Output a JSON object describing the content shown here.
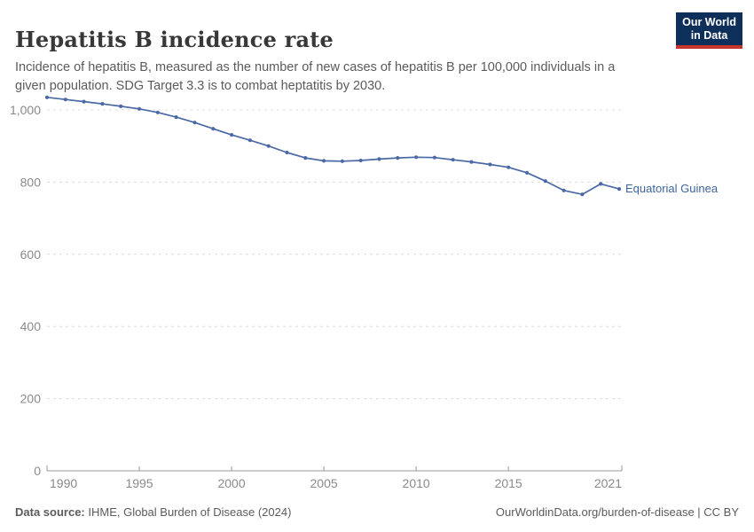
{
  "header": {
    "title": "Hepatitis B incidence rate",
    "subtitle": "Incidence of hepatitis B, measured as the number of new cases of hepatitis B per 100,000 individuals in a given population. SDG Target 3.3 is to combat heptatitis by 2030.",
    "logo": {
      "line1": "Our World",
      "line2": "in Data",
      "bg_color": "#0e2f5a",
      "bar_color": "#c6352c"
    }
  },
  "chart_data": {
    "type": "line",
    "title": "Hepatitis B incidence rate",
    "xlabel": "",
    "ylabel": "New cases of hepatitis B per 100,000 individuals",
    "xlim": [
      1990,
      2021
    ],
    "ylim": [
      0,
      1000
    ],
    "grid": "horizontal-dashed",
    "legend_position": "end-of-line-label",
    "x_ticks": [
      1990,
      1995,
      2000,
      2005,
      2010,
      2015,
      2021
    ],
    "y_ticks": [
      0,
      200,
      400,
      600,
      800,
      1000
    ],
    "y_tick_labels": [
      "0",
      "200",
      "400",
      "600",
      "800",
      "1,000"
    ],
    "series": [
      {
        "name": "Equatorial Guinea",
        "color": "#4b69a5",
        "label_color": "#3d649a",
        "x": [
          1990,
          1991,
          1992,
          1993,
          1994,
          1995,
          1996,
          1997,
          1998,
          1999,
          2000,
          2001,
          2002,
          2003,
          2004,
          2005,
          2006,
          2007,
          2008,
          2009,
          2010,
          2011,
          2012,
          2013,
          2014,
          2015,
          2016,
          2017,
          2018,
          2019,
          2020,
          2021
        ],
        "values": [
          1035,
          1029,
          1023,
          1017,
          1010,
          1003,
          993,
          980,
          965,
          948,
          931,
          916,
          900,
          882,
          867,
          859,
          858,
          860,
          864,
          867,
          869,
          868,
          862,
          856,
          849,
          841,
          826,
          803,
          777,
          766,
          795,
          781
        ]
      }
    ]
  },
  "footer": {
    "source_label": "Data source:",
    "source_text": " IHME, Global Burden of Disease (2024)",
    "link_text": "OurWorldinData.org/burden-of-disease | CC BY"
  },
  "colors": {
    "grid": "#dcdcdc",
    "axis": "#9a9a9a",
    "tick_label": "#8a8a8a",
    "subtitle": "#5b5b5b",
    "title": "#383838"
  }
}
